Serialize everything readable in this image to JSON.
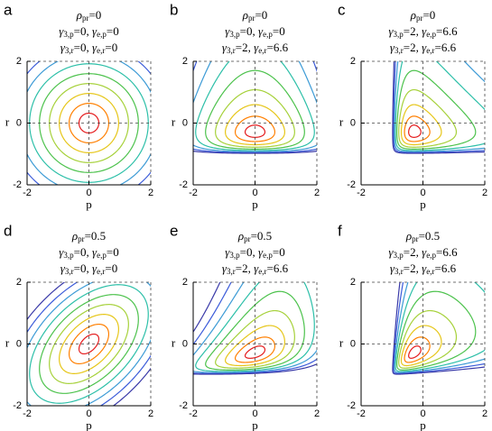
{
  "chart_data": [
    {
      "type": "contour",
      "letter": "a",
      "xlabel": "p",
      "ylabel": "r",
      "xlim": [
        -2,
        2
      ],
      "ylim": [
        -2,
        2
      ],
      "xticks": [
        -2,
        0,
        2
      ],
      "yticks": [
        -2,
        0,
        2
      ],
      "title_lines": [
        [
          {
            "name": "ρ",
            "sub": "pr",
            "value": 0
          }
        ],
        [
          {
            "name": "γ",
            "sub": "3,p",
            "value": 0
          },
          {
            "name": "γ",
            "sub": "e,p",
            "value": 0
          }
        ],
        [
          {
            "name": "γ",
            "sub": "3,r",
            "value": 0
          },
          {
            "name": "γ",
            "sub": "e,r",
            "value": 0
          }
        ]
      ]
    },
    {
      "type": "contour",
      "letter": "b",
      "xlabel": "p",
      "ylabel": "r",
      "xlim": [
        -2,
        2
      ],
      "ylim": [
        -2,
        2
      ],
      "xticks": [
        -2,
        0,
        2
      ],
      "yticks": [
        -2,
        0,
        2
      ],
      "title_lines": [
        [
          {
            "name": "ρ",
            "sub": "pr",
            "value": 0
          }
        ],
        [
          {
            "name": "γ",
            "sub": "3,p",
            "value": 0
          },
          {
            "name": "γ",
            "sub": "e,p",
            "value": 0
          }
        ],
        [
          {
            "name": "γ",
            "sub": "3,r",
            "value": 2
          },
          {
            "name": "γ",
            "sub": "e,r",
            "value": 6.6
          }
        ]
      ]
    },
    {
      "type": "contour",
      "letter": "c",
      "xlabel": "p",
      "ylabel": "r",
      "xlim": [
        -2,
        2
      ],
      "ylim": [
        -2,
        2
      ],
      "xticks": [
        -2,
        0,
        2
      ],
      "yticks": [
        -2,
        0,
        2
      ],
      "title_lines": [
        [
          {
            "name": "ρ",
            "sub": "pr",
            "value": 0
          }
        ],
        [
          {
            "name": "γ",
            "sub": "3,p",
            "value": 2
          },
          {
            "name": "γ",
            "sub": "e,p",
            "value": 6.6
          }
        ],
        [
          {
            "name": "γ",
            "sub": "3,r",
            "value": 2
          },
          {
            "name": "γ",
            "sub": "e,r",
            "value": 6.6
          }
        ]
      ]
    },
    {
      "type": "contour",
      "letter": "d",
      "xlabel": "p",
      "ylabel": "r",
      "xlim": [
        -2,
        2
      ],
      "ylim": [
        -2,
        2
      ],
      "xticks": [
        -2,
        0,
        2
      ],
      "yticks": [
        -2,
        0,
        2
      ],
      "title_lines": [
        [
          {
            "name": "ρ",
            "sub": "pr",
            "value": 0.5
          }
        ],
        [
          {
            "name": "γ",
            "sub": "3,p",
            "value": 0
          },
          {
            "name": "γ",
            "sub": "e,p",
            "value": 0
          }
        ],
        [
          {
            "name": "γ",
            "sub": "3,r",
            "value": 0
          },
          {
            "name": "γ",
            "sub": "e,r",
            "value": 0
          }
        ]
      ]
    },
    {
      "type": "contour",
      "letter": "e",
      "xlabel": "p",
      "ylabel": "r",
      "xlim": [
        -2,
        2
      ],
      "ylim": [
        -2,
        2
      ],
      "xticks": [
        -2,
        0,
        2
      ],
      "yticks": [
        -2,
        0,
        2
      ],
      "title_lines": [
        [
          {
            "name": "ρ",
            "sub": "pr",
            "value": 0.5
          }
        ],
        [
          {
            "name": "γ",
            "sub": "3,p",
            "value": 0
          },
          {
            "name": "γ",
            "sub": "e,p",
            "value": 0
          }
        ],
        [
          {
            "name": "γ",
            "sub": "3,r",
            "value": 2
          },
          {
            "name": "γ",
            "sub": "e,r",
            "value": 6.6
          }
        ]
      ]
    },
    {
      "type": "contour",
      "letter": "f",
      "xlabel": "p",
      "ylabel": "r",
      "xlim": [
        -2,
        2
      ],
      "ylim": [
        -2,
        2
      ],
      "xticks": [
        -2,
        0,
        2
      ],
      "yticks": [
        -2,
        0,
        2
      ],
      "title_lines": [
        [
          {
            "name": "ρ",
            "sub": "pr",
            "value": 0.5
          }
        ],
        [
          {
            "name": "γ",
            "sub": "3,p",
            "value": 2
          },
          {
            "name": "γ",
            "sub": "e,p",
            "value": 6.6
          }
        ],
        [
          {
            "name": "γ",
            "sub": "3,r",
            "value": 2
          },
          {
            "name": "γ",
            "sub": "e,r",
            "value": 6.6
          }
        ]
      ]
    }
  ],
  "equals": "=",
  "separator": ", ",
  "contour_colors": [
    "#e41a1c",
    "#ff7f00",
    "#e6c619",
    "#a6d13a",
    "#4cc24c",
    "#2cbfa8",
    "#3d9bd6",
    "#3b5bd9",
    "#3a3aa8"
  ]
}
